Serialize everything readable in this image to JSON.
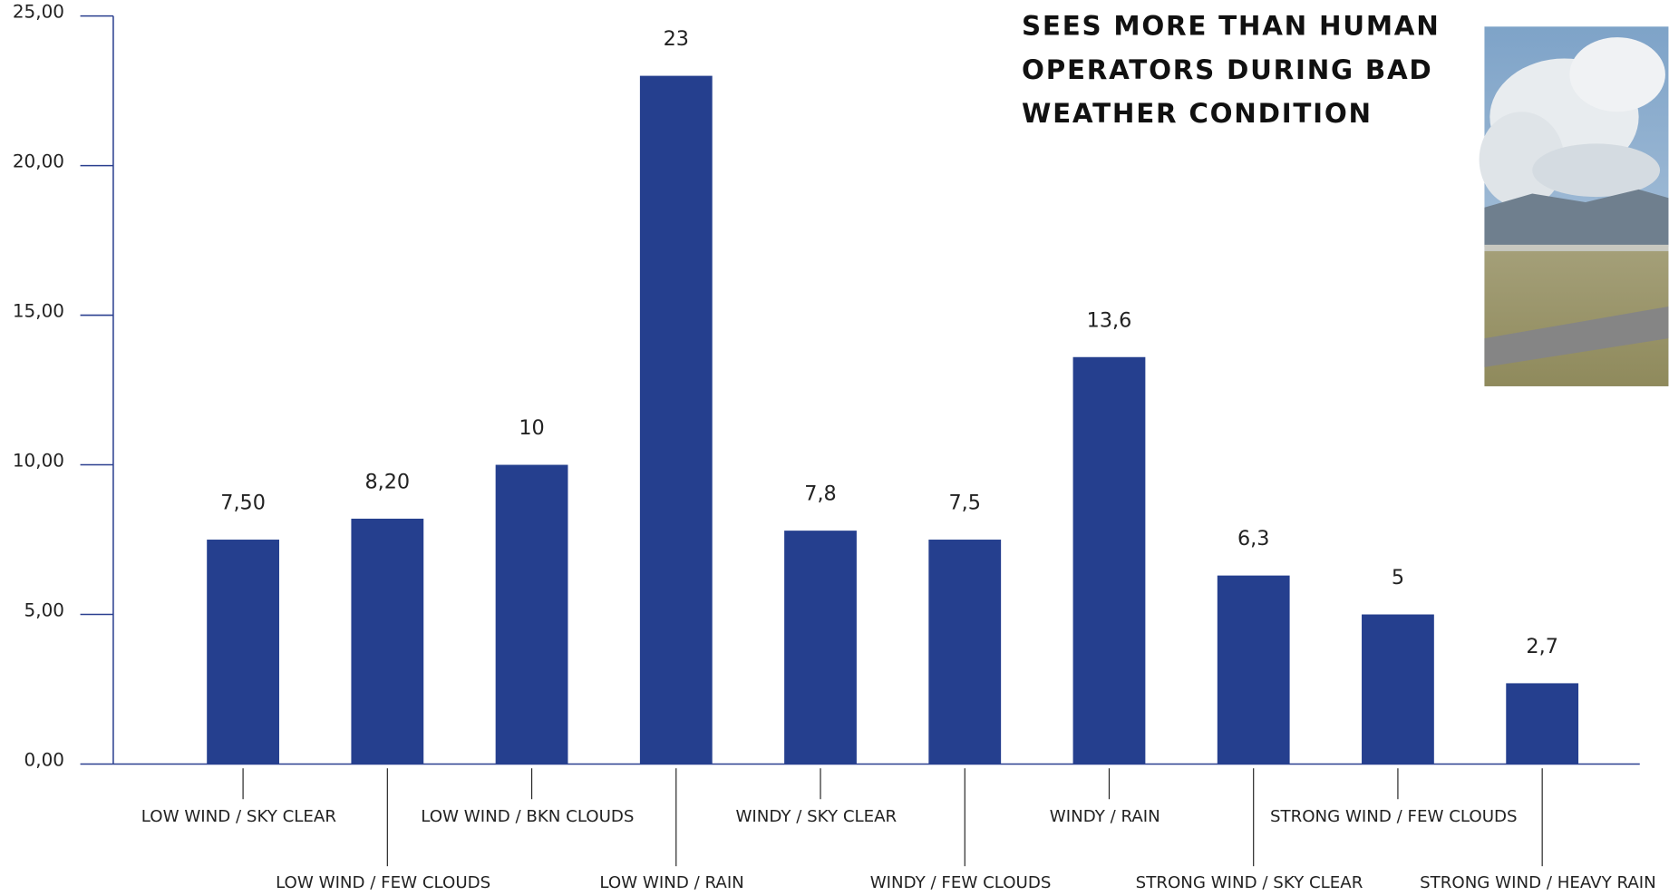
{
  "chart_data": {
    "type": "bar",
    "title": "SEES MORE THAN HUMAN OPERATORS DURING BAD WEATHER CONDITION",
    "categories": [
      "LOW WIND / SKY CLEAR",
      "LOW WIND / FEW CLOUDS",
      "LOW WIND / BKN CLOUDS",
      "LOW WIND / RAIN",
      "WINDY / SKY CLEAR",
      "WINDY / FEW CLOUDS",
      "WINDY / RAIN",
      "STRONG WIND / SKY CLEAR",
      "STRONG WIND / FEW CLOUDS",
      "STRONG WIND / HEAVY RAIN"
    ],
    "values": [
      7.5,
      8.2,
      10,
      23,
      7.8,
      7.5,
      13.6,
      6.3,
      5,
      2.7
    ],
    "value_labels": [
      "7,50",
      "8,20",
      "10",
      "23",
      "7,8",
      "7,5",
      "13,6",
      "6,3",
      "5",
      "2,7"
    ],
    "color": "#253f8e",
    "ylim": [
      0,
      25
    ],
    "yticks": [
      {
        "value": 0,
        "label": "0,00"
      },
      {
        "value": 5,
        "label": "5,00"
      },
      {
        "value": 10,
        "label": "10,00"
      },
      {
        "value": 15,
        "label": "15,00"
      },
      {
        "value": 20,
        "label": "20,00"
      },
      {
        "value": 25,
        "label": "25,00"
      }
    ]
  }
}
